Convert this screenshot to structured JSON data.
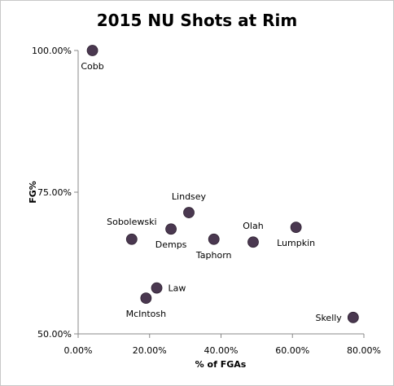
{
  "chart_data": {
    "type": "scatter",
    "title": "2015 NU Shots at Rim",
    "xlabel": "% of FGAs",
    "ylabel": "FG%",
    "xlim": [
      0,
      80
    ],
    "ylim": [
      50,
      100
    ],
    "x_ticks": [
      {
        "value": 0,
        "label": "0.00%"
      },
      {
        "value": 20,
        "label": "20.00%"
      },
      {
        "value": 40,
        "label": "40.00%"
      },
      {
        "value": 60,
        "label": "60.00%"
      },
      {
        "value": 80,
        "label": "80.00%"
      }
    ],
    "y_ticks": [
      {
        "value": 50,
        "label": "50.00%"
      },
      {
        "value": 75,
        "label": "75.00%"
      },
      {
        "value": 100,
        "label": "100.00%"
      }
    ],
    "grid": false,
    "marker_color": "#4a3850",
    "points": [
      {
        "name": "Cobb",
        "x": 4,
        "y": 100,
        "label_pos": "below"
      },
      {
        "name": "Lindsey",
        "x": 31,
        "y": 71.4,
        "label_pos": "above"
      },
      {
        "name": "Sobolewski",
        "x": 15,
        "y": 66.7,
        "label_pos": "above-left"
      },
      {
        "name": "Demps",
        "x": 26,
        "y": 68.5,
        "label_pos": "below"
      },
      {
        "name": "Taphorn",
        "x": 38,
        "y": 66.7,
        "label_pos": "below"
      },
      {
        "name": "Olah",
        "x": 49,
        "y": 66.2,
        "label_pos": "above"
      },
      {
        "name": "Lumpkin",
        "x": 61,
        "y": 68.8,
        "label_pos": "below"
      },
      {
        "name": "Law",
        "x": 22,
        "y": 58.1,
        "label_pos": "right"
      },
      {
        "name": "McIntosh",
        "x": 19,
        "y": 56.3,
        "label_pos": "below"
      },
      {
        "name": "Skelly",
        "x": 77,
        "y": 52.9,
        "label_pos": "left"
      }
    ]
  }
}
